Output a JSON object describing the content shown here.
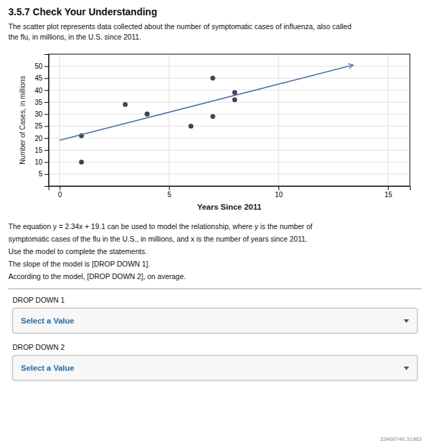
{
  "chart_data": {
    "type": "scatter",
    "title": "3.5.7 Check Your Understanding",
    "subtitle": [
      "The scatter plot represents data collected about the number of symptomatic cases of influenza, also called",
      "the flu, in millions, in the U.S. since 2011."
    ],
    "x_label": "Years Since 2011",
    "y_label": "Number of Cases, in millions",
    "xlim": [
      -0.5,
      16
    ],
    "ylim": [
      0,
      55
    ],
    "xticks": [
      0,
      5,
      10,
      15
    ],
    "yticks": [
      5,
      10,
      15,
      20,
      25,
      30,
      35,
      40,
      45,
      50
    ],
    "grid": true,
    "series": [
      {
        "type": "scatter",
        "color": "#444444",
        "x": [
          1,
          1,
          3,
          4,
          4,
          6,
          7,
          7,
          8,
          8
        ],
        "values": [
          21,
          10,
          34,
          30,
          30,
          25,
          45,
          29,
          36,
          39
        ]
      },
      {
        "type": "line",
        "color": "#4a6faa",
        "marker": "arrow",
        "x": [
          0,
          13.4
        ],
        "values": [
          19.1,
          50.456
        ]
      }
    ],
    "annotations": [
      "The equation y = 2.34x + 19.1 can be used to model the relationship, where y is the number of",
      "symptomatic cases of the flu in the U.S., in millions, and x is the number of years since 2011.",
      "Use the model to complete the statements.",
      "The slope of the model is [DROP DOWN 1].",
      "According to the model, [DROP DOWN 2], on average."
    ],
    "dropdowns": [
      {
        "label": "DROP DOWN 1",
        "value": "Select a Value"
      },
      {
        "label": "DROP DOWN 2",
        "value": "Select a Value"
      }
    ],
    "footer": "33400740.31983"
  }
}
